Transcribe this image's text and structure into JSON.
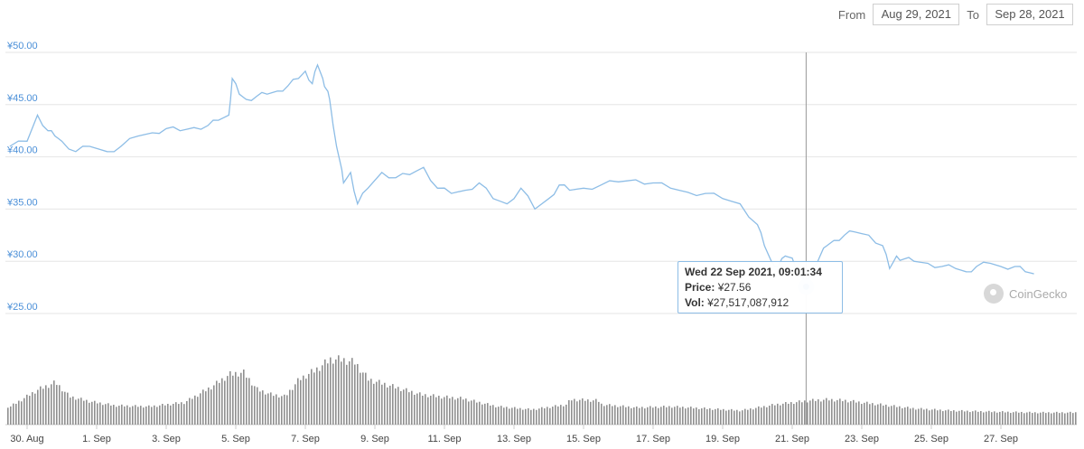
{
  "range": {
    "from_label": "From",
    "from_value": "Aug 29, 2021",
    "to_label": "To",
    "to_value": "Sep 28, 2021"
  },
  "tooltip": {
    "date": "Wed 22 Sep 2021, 09:01:34",
    "price_label": "Price:",
    "price_value": "¥27.56",
    "vol_label": "Vol:",
    "vol_value": "¥27,517,087,912"
  },
  "brand": {
    "name": "CoinGecko",
    "icon": "gecko-logo-icon"
  },
  "colors": {
    "price_line": "#8dbde6",
    "volume_bar": "#8f8f8f",
    "y_label": "#4a8fd8"
  },
  "chart_data": {
    "type": "line",
    "title": "",
    "xlabel": "",
    "ylabel": "",
    "ylim": [
      25,
      50
    ],
    "y_ticks": [
      "¥25.00",
      "¥30.00",
      "¥35.00",
      "¥40.00",
      "¥45.00",
      "¥50.00"
    ],
    "y_tick_values": [
      25,
      30,
      35,
      40,
      45,
      50
    ],
    "x_ticks": [
      "30. Aug",
      "1. Sep",
      "3. Sep",
      "5. Sep",
      "7. Sep",
      "9. Sep",
      "11. Sep",
      "13. Sep",
      "15. Sep",
      "17. Sep",
      "19. Sep",
      "21. Sep",
      "23. Sep",
      "25. Sep",
      "27. Sep"
    ],
    "x_tick_day": [
      0,
      2,
      4,
      6,
      8,
      10,
      12,
      14,
      16,
      18,
      20,
      22,
      24,
      26,
      28
    ],
    "grid": true,
    "series": [
      {
        "kind": "price",
        "x_day": [
          -0.5,
          0,
          0.3,
          0.6,
          0.8,
          1.0,
          1.4,
          1.8,
          2.3,
          2.7,
          3.2,
          3.6,
          4.0,
          4.4,
          4.8,
          5.2,
          5.5,
          5.8,
          5.9,
          6.1,
          6.3,
          6.6,
          6.9,
          7.2,
          7.5,
          7.8,
          8.0,
          8.2,
          8.35,
          8.5,
          8.6,
          8.7,
          8.8,
          9.0,
          9.1,
          9.3,
          9.5,
          9.8,
          10.2,
          10.6,
          11.0,
          11.4,
          11.8,
          12.2,
          12.6,
          13.0,
          13.4,
          13.8,
          14.2,
          14.6,
          15.0,
          15.3,
          15.6,
          16.0,
          16.5,
          17.0,
          17.5,
          18.0,
          18.5,
          19.0,
          19.5,
          20.0,
          20.5,
          21.0,
          21.2,
          21.4,
          21.6,
          21.8,
          22.0,
          22.2,
          22.4,
          22.6,
          22.8,
          23.0,
          23.2,
          23.5,
          23.8,
          24.2,
          24.6,
          24.8,
          25.0,
          25.2,
          25.5,
          25.9,
          26.3,
          26.7,
          27.0,
          27.3,
          27.7,
          28.0,
          28.4,
          28.7,
          28.95
        ],
        "y": [
          41.0,
          41.5,
          44.0,
          42.5,
          42.0,
          41.5,
          40.5,
          41.0,
          40.5,
          41.0,
          42.0,
          42.3,
          42.7,
          42.5,
          42.8,
          43.0,
          43.5,
          44.0,
          47.5,
          46.0,
          45.5,
          45.8,
          46.0,
          46.3,
          46.8,
          47.5,
          48.2,
          47.0,
          48.8,
          47.5,
          46.5,
          45.5,
          43.0,
          39.5,
          37.5,
          38.5,
          35.5,
          37.0,
          38.5,
          38.0,
          38.3,
          39.0,
          37.0,
          36.5,
          36.8,
          37.5,
          36.0,
          35.5,
          37.0,
          35.0,
          36.0,
          37.3,
          36.8,
          37.0,
          37.3,
          37.6,
          37.8,
          37.5,
          37.0,
          36.6,
          36.5,
          36.0,
          35.5,
          33.5,
          31.5,
          30.0,
          29.5,
          30.5,
          30.3,
          29.0,
          27.56,
          29.5,
          30.5,
          31.5,
          32.0,
          32.5,
          32.8,
          32.5,
          31.5,
          29.3,
          30.5,
          30.2,
          30.0,
          29.8,
          29.5,
          29.3,
          29.0,
          29.5,
          29.8,
          29.5,
          29.5,
          29.0,
          28.8
        ]
      },
      {
        "kind": "volume",
        "x_day": [
          -0.5,
          0.3,
          0.8,
          1.2,
          1.8,
          2.5,
          3.5,
          4.5,
          5.3,
          5.8,
          6.2,
          6.6,
          7.0,
          7.4,
          7.8,
          8.3,
          8.7,
          9.0,
          9.4,
          9.8,
          10.3,
          10.8,
          11.3,
          11.8,
          12.5,
          13.0,
          13.5,
          14.5,
          15.5,
          15.6,
          16.4,
          16.5,
          17.5,
          18.5,
          19.5,
          20.5,
          21.5,
          22.0,
          22.5,
          23.0,
          23.5,
          24.0,
          24.5,
          25.0,
          25.5,
          26.5,
          27.5,
          28.95
        ],
        "volume_relative": [
          0.18,
          0.35,
          0.42,
          0.28,
          0.23,
          0.19,
          0.18,
          0.22,
          0.38,
          0.5,
          0.52,
          0.35,
          0.3,
          0.28,
          0.45,
          0.55,
          0.65,
          0.65,
          0.62,
          0.45,
          0.4,
          0.35,
          0.3,
          0.28,
          0.26,
          0.22,
          0.18,
          0.15,
          0.2,
          0.25,
          0.24,
          0.2,
          0.17,
          0.18,
          0.16,
          0.14,
          0.2,
          0.22,
          0.24,
          0.25,
          0.24,
          0.22,
          0.2,
          0.18,
          0.16,
          0.14,
          0.13,
          0.12
        ]
      }
    ],
    "highlight": {
      "x_day": 22.4,
      "y": 27.56
    }
  }
}
